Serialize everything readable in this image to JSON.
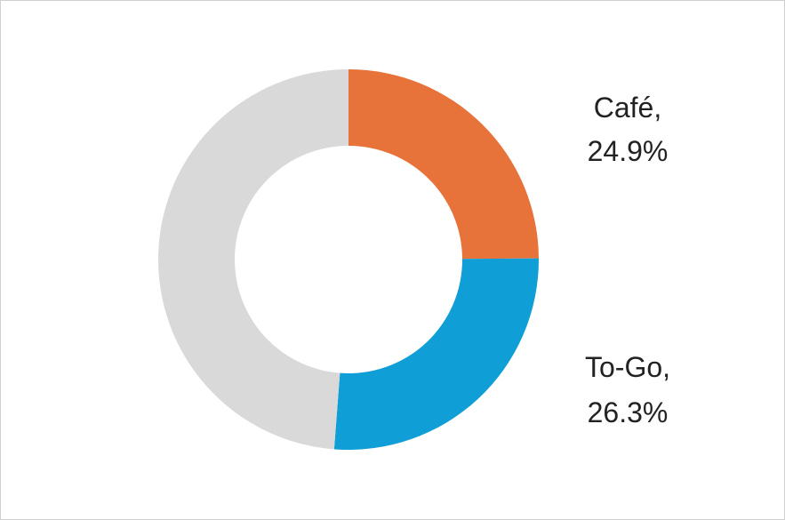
{
  "chart_data": {
    "type": "pie",
    "donut": true,
    "title": "",
    "slices": [
      {
        "label": "Café",
        "value": 24.9,
        "value_text": "24.9%",
        "color": "#E8733A"
      },
      {
        "label": "To-Go",
        "value": 26.3,
        "value_text": "26.3%",
        "color": "#0F9ED5"
      },
      {
        "label": "",
        "value": 48.8,
        "value_text": "",
        "color": "#D9D9D9"
      }
    ],
    "legend": "none"
  }
}
